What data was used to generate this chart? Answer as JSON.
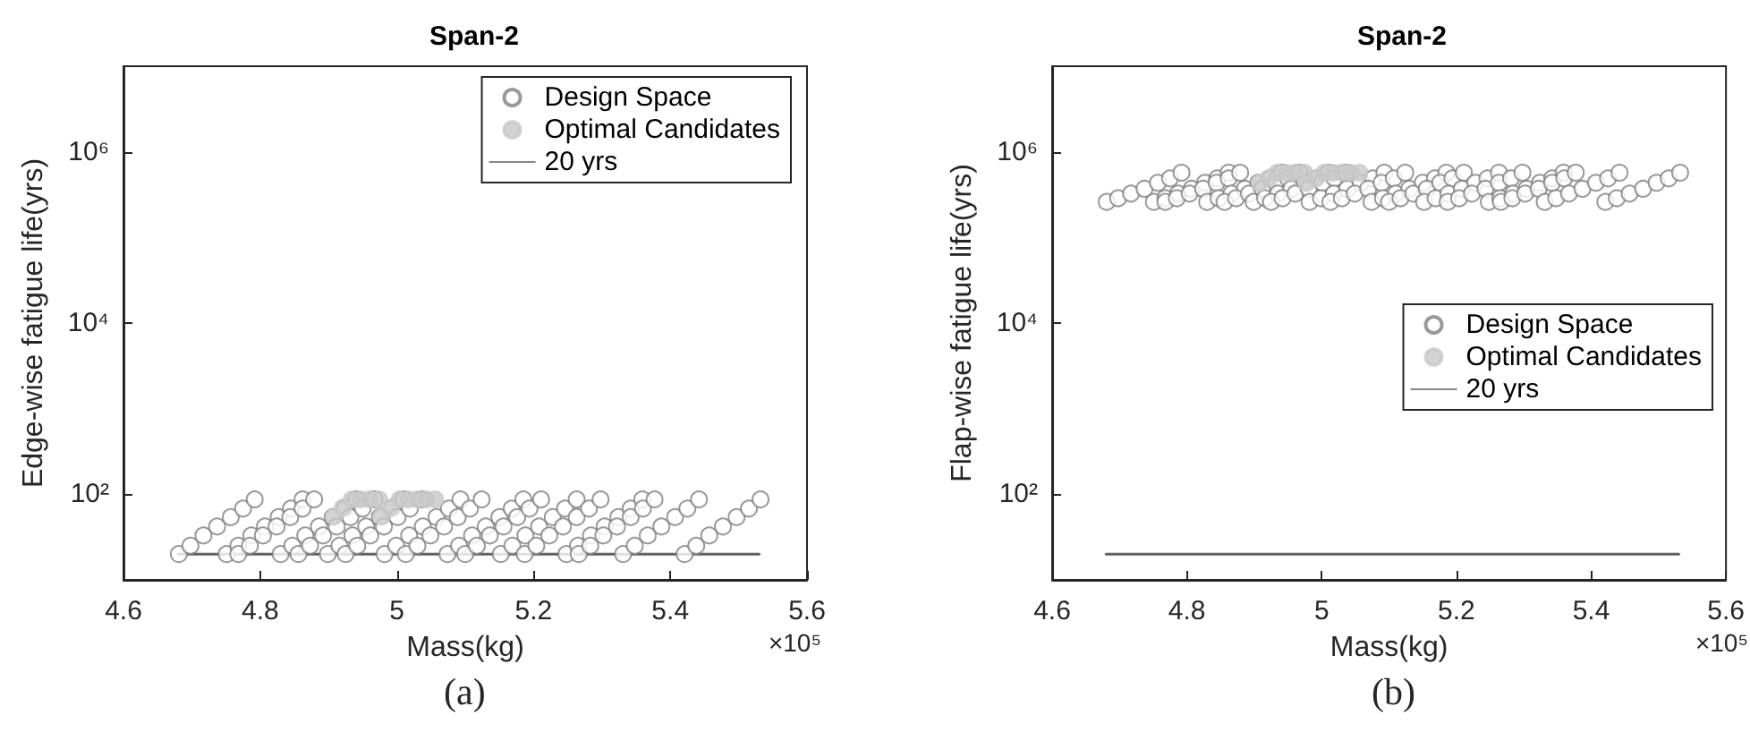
{
  "chart_data": [
    {
      "type": "scatter",
      "title": "Span-2",
      "xlabel": "Mass(kg)",
      "ylabel": "Edge-wise fatigue life(yrs)",
      "annotations": [
        "×10⁵",
        "(a)"
      ],
      "xlim": [
        4.6,
        5.6
      ],
      "xticks": [
        4.6,
        4.8,
        5,
        5.2,
        5.4,
        5.6
      ],
      "ylim": [
        10,
        10000000
      ],
      "yticks": [
        {
          "value": 100,
          "label": "10²"
        },
        {
          "value": 10000,
          "label": "10⁴"
        },
        {
          "value": 1000000,
          "label": "10⁶"
        }
      ],
      "log": "y",
      "grid": false,
      "legend": "top right",
      "marker": "circle",
      "series": [
        {
          "name": "Design Space",
          "color": "#808080",
          "x": [
            4.681,
            4.698,
            4.717,
            4.737,
            4.757,
            4.775,
            4.792,
            4.751,
            4.768,
            4.787,
            4.807,
            4.827,
            4.845,
            4.862,
            4.768,
            4.785,
            4.804,
            4.824,
            4.844,
            4.862,
            4.879,
            4.83,
            4.847,
            4.866,
            4.886,
            4.906,
            4.924,
            4.941,
            4.856,
            4.873,
            4.892,
            4.912,
            4.932,
            4.95,
            4.967,
            4.899,
            4.916,
            4.935,
            4.955,
            4.975,
            4.993,
            5.01,
            4.925,
            4.942,
            4.961,
            4.981,
            5.001,
            5.019,
            5.036,
            4.982,
            4.999,
            5.018,
            5.038,
            5.058,
            5.076,
            5.093,
            5.013,
            5.03,
            5.049,
            5.069,
            5.089,
            5.107,
            5.124,
            5.074,
            5.091,
            5.11,
            5.13,
            5.15,
            5.168,
            5.185,
            5.1,
            5.117,
            5.136,
            5.156,
            5.176,
            5.194,
            5.211,
            5.152,
            5.169,
            5.188,
            5.208,
            5.228,
            5.246,
            5.263,
            5.187,
            5.204,
            5.223,
            5.243,
            5.263,
            5.281,
            5.298,
            5.248,
            5.265,
            5.284,
            5.304,
            5.324,
            5.342,
            5.359,
            5.266,
            5.283,
            5.302,
            5.322,
            5.342,
            5.36,
            5.377,
            5.331,
            5.348,
            5.367,
            5.387,
            5.407,
            5.425,
            5.442,
            5.421,
            5.438,
            5.457,
            5.477,
            5.497,
            5.515,
            5.532
          ],
          "values": [
            20,
            25,
            33,
            42,
            54,
            68,
            87,
            20,
            25,
            33,
            42,
            54,
            68,
            87,
            20,
            25,
            33,
            42,
            54,
            68,
            87,
            20,
            25,
            33,
            42,
            54,
            68,
            87,
            20,
            25,
            33,
            42,
            54,
            68,
            87,
            20,
            25,
            33,
            42,
            54,
            68,
            87,
            20,
            25,
            33,
            42,
            54,
            68,
            87,
            20,
            25,
            33,
            42,
            54,
            68,
            87,
            20,
            25,
            33,
            42,
            54,
            68,
            87,
            20,
            25,
            33,
            42,
            54,
            68,
            87,
            20,
            25,
            33,
            42,
            54,
            68,
            87,
            20,
            25,
            33,
            42,
            54,
            68,
            87,
            20,
            25,
            33,
            42,
            54,
            68,
            87,
            20,
            25,
            33,
            42,
            54,
            68,
            87,
            20,
            25,
            33,
            42,
            54,
            68,
            87,
            20,
            25,
            33,
            42,
            54,
            68,
            87,
            20,
            25,
            33,
            42,
            54,
            68,
            87
          ]
        },
        {
          "name": "Optimal Candidates",
          "color": "#c8c8c8",
          "x": [
            4.908,
            4.921,
            4.934,
            4.947,
            4.96,
            4.974,
            4.978,
            4.991,
            5.004,
            5.017,
            5.03,
            5.043,
            5.056
          ],
          "values": [
            55,
            70,
            87,
            87,
            87,
            87,
            55,
            70,
            87,
            87,
            87,
            87,
            87
          ]
        },
        {
          "name": "20 yrs",
          "type": "line",
          "color": "#606060",
          "marker": "none",
          "line_style": "solid",
          "x": [
            4.68,
            5.53
          ],
          "values": [
            20,
            20
          ]
        }
      ]
    },
    {
      "type": "scatter",
      "title": "Span-2",
      "xlabel": "Mass(kg)",
      "ylabel": "Flap-wise fatigue life(yrs)",
      "annotations": [
        "×10⁵",
        "(b)"
      ],
      "xlim": [
        4.6,
        5.6
      ],
      "xticks": [
        4.6,
        4.8,
        5,
        5.2,
        5.4,
        5.6
      ],
      "ylim": [
        10,
        10000000
      ],
      "yticks": [
        {
          "value": 100,
          "label": "10²"
        },
        {
          "value": 10000,
          "label": "10⁴"
        },
        {
          "value": 1000000,
          "label": "10⁶"
        }
      ],
      "log": "y",
      "grid": false,
      "legend": "right",
      "marker": "circle",
      "series": [
        {
          "name": "Design Space",
          "color": "#808080",
          "x": [
            4.681,
            4.698,
            4.717,
            4.737,
            4.757,
            4.775,
            4.792,
            4.751,
            4.768,
            4.787,
            4.807,
            4.827,
            4.845,
            4.862,
            4.768,
            4.785,
            4.804,
            4.824,
            4.844,
            4.862,
            4.879,
            4.83,
            4.847,
            4.866,
            4.886,
            4.906,
            4.924,
            4.941,
            4.856,
            4.873,
            4.892,
            4.912,
            4.932,
            4.95,
            4.967,
            4.899,
            4.916,
            4.935,
            4.955,
            4.975,
            4.993,
            5.01,
            4.925,
            4.942,
            4.961,
            4.981,
            5.001,
            5.019,
            5.036,
            4.982,
            4.999,
            5.018,
            5.038,
            5.058,
            5.076,
            5.093,
            5.013,
            5.03,
            5.049,
            5.069,
            5.089,
            5.107,
            5.124,
            5.074,
            5.091,
            5.11,
            5.13,
            5.15,
            5.168,
            5.185,
            5.1,
            5.117,
            5.136,
            5.156,
            5.176,
            5.194,
            5.211,
            5.152,
            5.169,
            5.188,
            5.208,
            5.228,
            5.246,
            5.263,
            5.187,
            5.204,
            5.223,
            5.243,
            5.263,
            5.281,
            5.298,
            5.248,
            5.265,
            5.284,
            5.304,
            5.324,
            5.342,
            5.359,
            5.266,
            5.283,
            5.302,
            5.322,
            5.342,
            5.36,
            5.377,
            5.331,
            5.348,
            5.367,
            5.387,
            5.407,
            5.425,
            5.442,
            5.421,
            5.438,
            5.457,
            5.477,
            5.497,
            5.515,
            5.532
          ],
          "values": [
            260000,
            287000,
            325000,
            370000,
            435000,
            490000,
            570000,
            260000,
            287000,
            325000,
            370000,
            435000,
            490000,
            570000,
            260000,
            287000,
            325000,
            370000,
            435000,
            490000,
            570000,
            260000,
            287000,
            325000,
            370000,
            435000,
            490000,
            570000,
            260000,
            287000,
            325000,
            370000,
            435000,
            490000,
            570000,
            260000,
            287000,
            325000,
            370000,
            435000,
            490000,
            570000,
            260000,
            287000,
            325000,
            370000,
            435000,
            490000,
            570000,
            260000,
            287000,
            325000,
            370000,
            435000,
            490000,
            570000,
            260000,
            287000,
            325000,
            370000,
            435000,
            490000,
            570000,
            260000,
            287000,
            325000,
            370000,
            435000,
            490000,
            570000,
            260000,
            287000,
            325000,
            370000,
            435000,
            490000,
            570000,
            260000,
            287000,
            325000,
            370000,
            435000,
            490000,
            570000,
            260000,
            287000,
            325000,
            370000,
            435000,
            490000,
            570000,
            260000,
            287000,
            325000,
            370000,
            435000,
            490000,
            570000,
            260000,
            287000,
            325000,
            370000,
            435000,
            490000,
            570000,
            260000,
            287000,
            325000,
            370000,
            435000,
            490000,
            570000,
            260000,
            287000,
            325000,
            370000,
            435000,
            490000,
            570000
          ]
        },
        {
          "name": "Optimal Candidates",
          "color": "#c8c8c8",
          "x": [
            4.908,
            4.921,
            4.934,
            4.947,
            4.96,
            4.974,
            4.978,
            4.991,
            5.004,
            5.017,
            5.03,
            5.043,
            5.056
          ],
          "values": [
            435000,
            490000,
            570000,
            570000,
            570000,
            570000,
            435000,
            490000,
            570000,
            570000,
            570000,
            570000,
            570000
          ]
        },
        {
          "name": "20 yrs",
          "type": "line",
          "color": "#606060",
          "marker": "none",
          "line_style": "solid",
          "x": [
            4.68,
            5.53
          ],
          "values": [
            20,
            20
          ]
        }
      ]
    }
  ]
}
